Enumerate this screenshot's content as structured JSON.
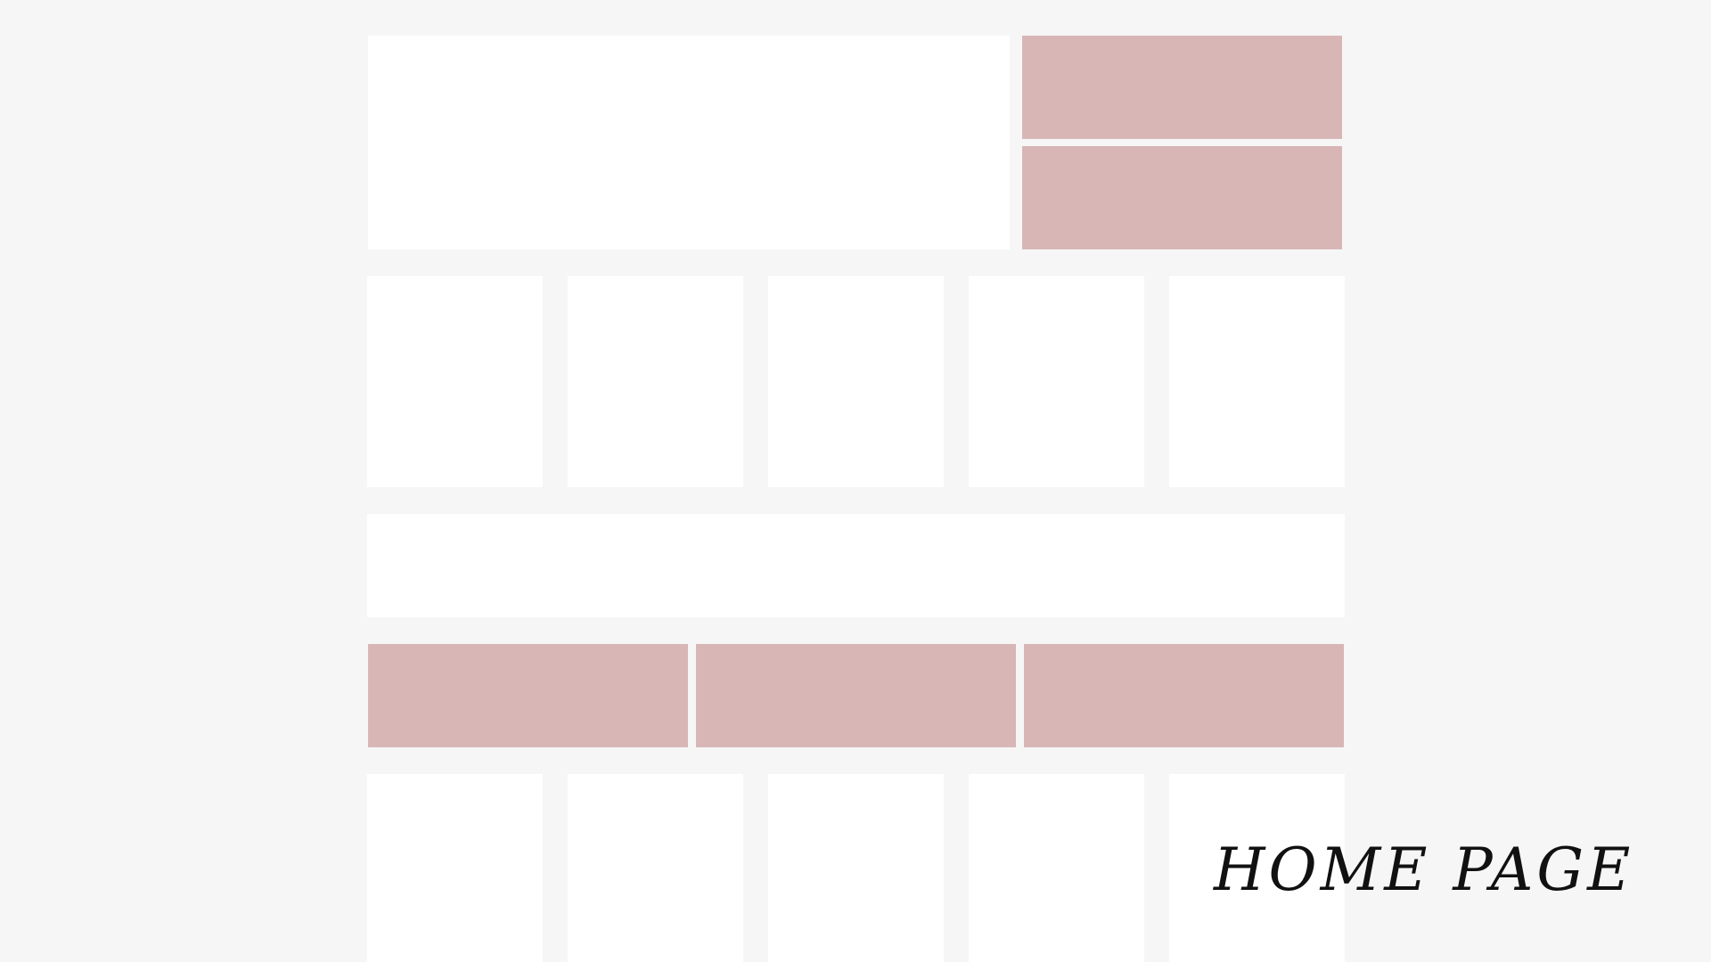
{
  "page": {
    "label": "HOME PAGE"
  },
  "colors": {
    "background": "#f6f6f6",
    "placeholder_white": "#ffffff",
    "placeholder_pink": "#d8b6b6",
    "label_text": "#111111"
  },
  "layout_blocks": {
    "hero_main": "white",
    "hero_side": [
      "pink",
      "pink"
    ],
    "tile_row_1": [
      "white",
      "white",
      "white",
      "white",
      "white"
    ],
    "banner": "white",
    "pink_trio": [
      "pink",
      "pink",
      "pink"
    ],
    "tile_row_2": [
      "white",
      "white",
      "white",
      "white",
      "white"
    ]
  }
}
